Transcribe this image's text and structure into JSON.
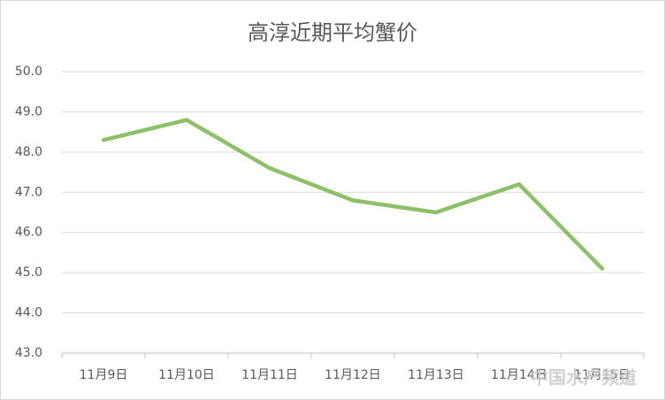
{
  "chart_data": {
    "type": "line",
    "title": "高淳近期平均蟹价",
    "categories": [
      "11月9日",
      "11月10日",
      "11月11日",
      "11月12日",
      "11月13日",
      "11月14日",
      "11月15日"
    ],
    "series": [
      {
        "name": "平均蟹价",
        "color": "#8cc168",
        "values": [
          48.3,
          48.8,
          47.6,
          46.8,
          46.5,
          47.2,
          45.1
        ]
      }
    ],
    "ylim": [
      43,
      50
    ],
    "yticks": [
      {
        "value": 43,
        "label": "43.0"
      },
      {
        "value": 44,
        "label": "44.0"
      },
      {
        "value": 45,
        "label": "45.0"
      },
      {
        "value": 46,
        "label": "46.0"
      },
      {
        "value": 47,
        "label": "47.0"
      },
      {
        "value": 48,
        "label": "48.0"
      },
      {
        "value": 49,
        "label": "49.0"
      },
      {
        "value": 50,
        "label": "50.0"
      }
    ],
    "grid": true,
    "watermark": "中国水产频道"
  }
}
